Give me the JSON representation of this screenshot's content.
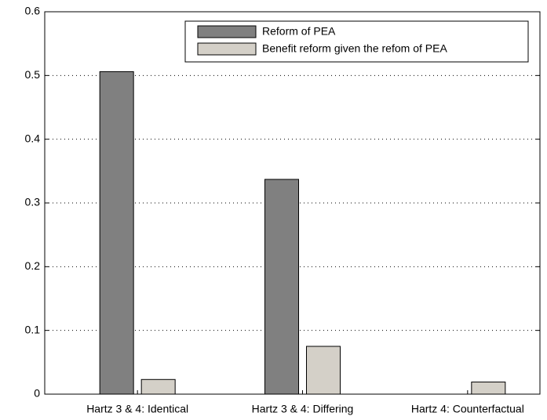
{
  "chart_data": {
    "type": "bar",
    "categories": [
      "Hartz 3 & 4: Identical",
      "Hartz 3 & 4: Differing",
      "Hartz 4: Counterfactual"
    ],
    "series": [
      {
        "name": "Reform of PEA",
        "color": "#808080",
        "values": [
          0.506,
          0.337,
          0
        ]
      },
      {
        "name": "Benefit reform given the refom of PEA",
        "color": "#d4d0c8",
        "values": [
          0.023,
          0.075,
          0.019
        ]
      }
    ],
    "ylim": [
      0,
      0.6
    ],
    "yticks": [
      0,
      0.1,
      0.2,
      0.3,
      0.4,
      0.5,
      0.6
    ],
    "grid": true,
    "legend": "upper right"
  }
}
